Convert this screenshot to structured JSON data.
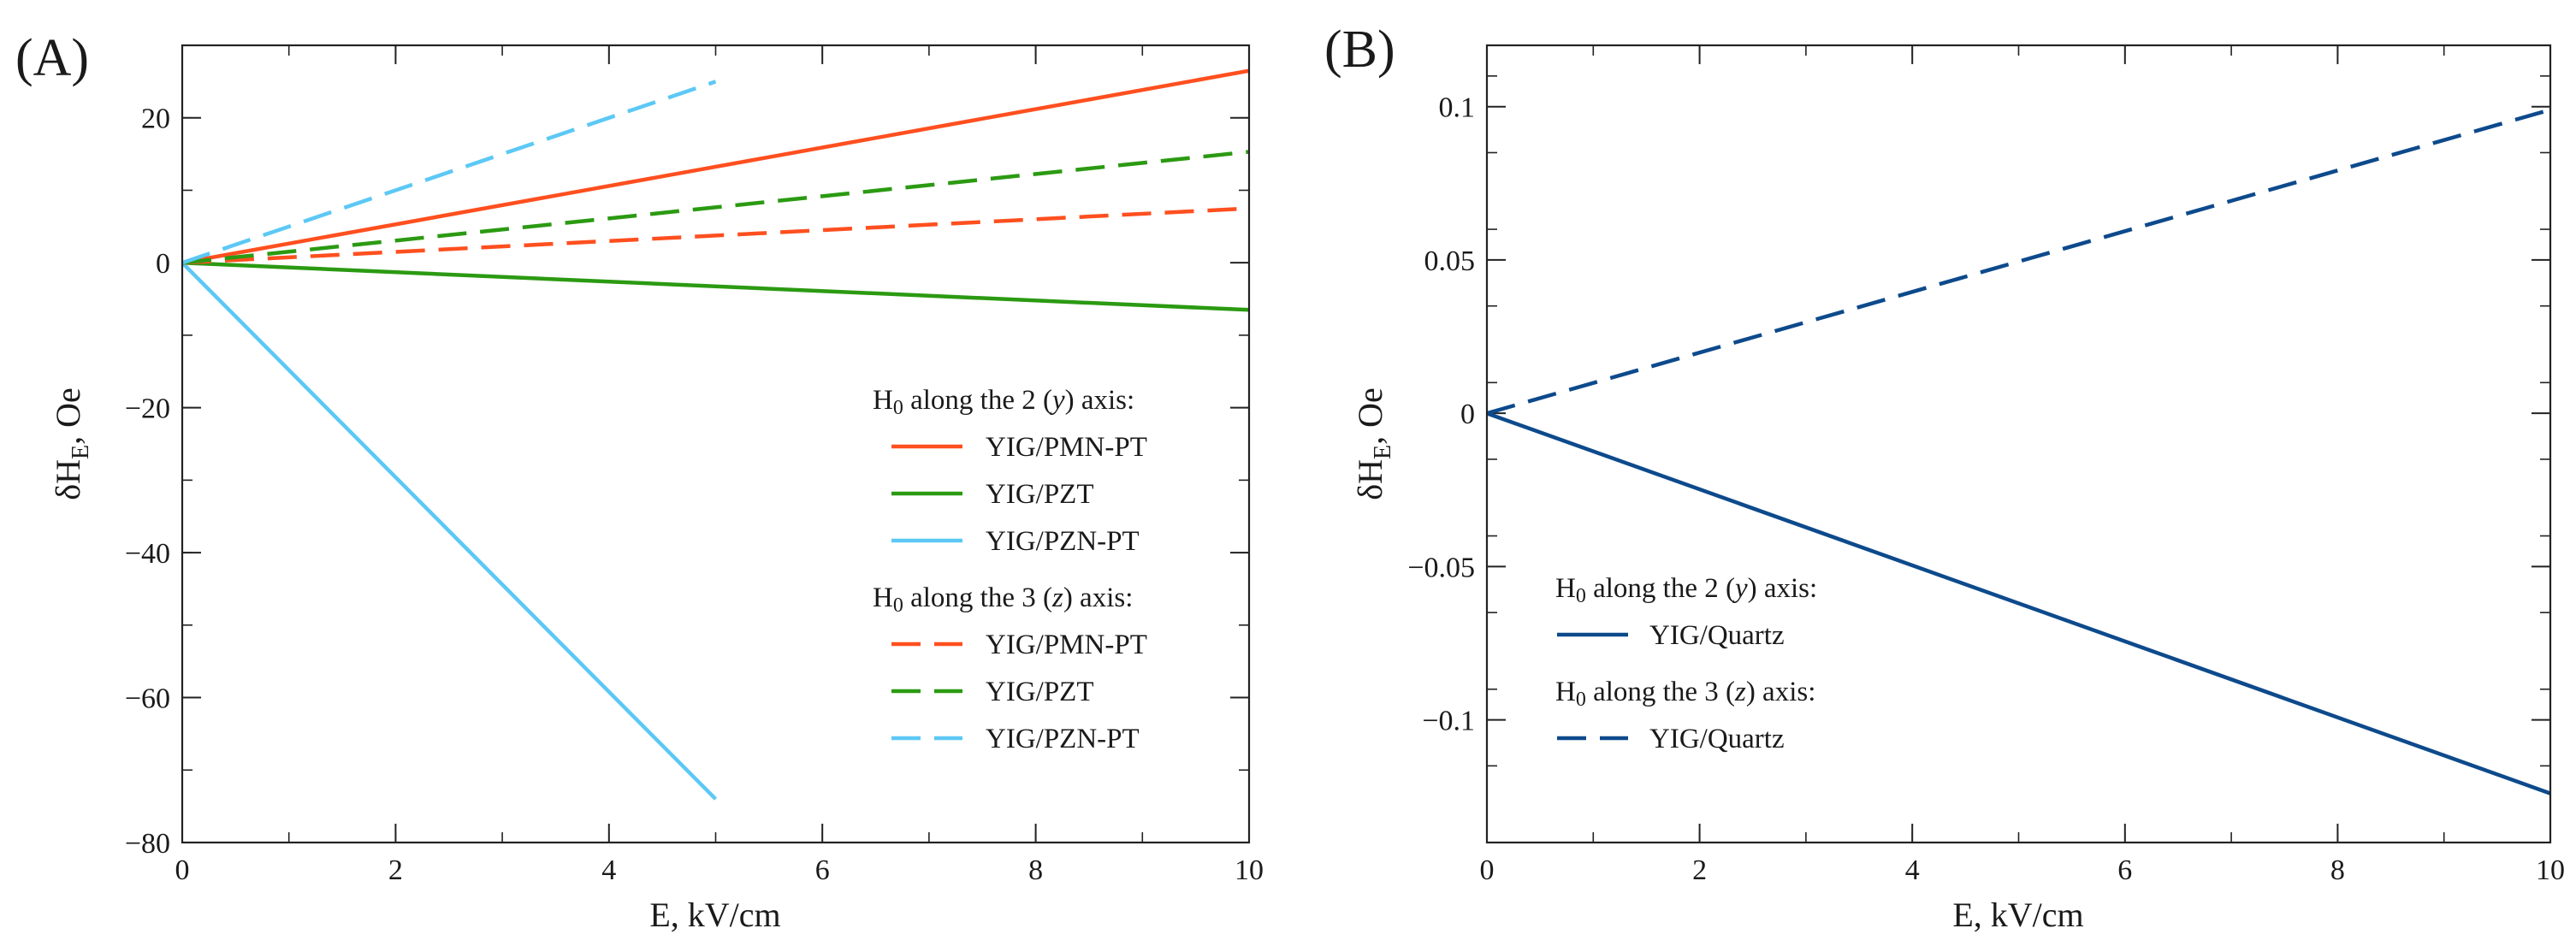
{
  "chart_data": [
    {
      "type": "line",
      "panel_label": "(A)",
      "xlabel": "E, kV/cm",
      "ylabel_main": "δH",
      "ylabel_sub": "E",
      "ylabel_tail": ", Oe",
      "xlim": [
        0,
        10
      ],
      "ylim": [
        -80,
        30
      ],
      "xticks": [
        0,
        2,
        4,
        6,
        8,
        10
      ],
      "xtick_labels": [
        "0",
        "2",
        "4",
        "6",
        "8",
        "10"
      ],
      "yticks": [
        -80,
        -60,
        -40,
        -20,
        0,
        20
      ],
      "ytick_labels": [
        "−80",
        "−60",
        "−40",
        "−20",
        "0",
        "20"
      ],
      "grid": false,
      "legend_position": "right",
      "legend_groups": [
        {
          "header_prefix": "H",
          "header_sub": "0",
          "header_text": " along the 2 (",
          "header_var": "y",
          "header_end": ") axis:",
          "series_indices": [
            0,
            1,
            2
          ]
        },
        {
          "header_prefix": "H",
          "header_sub": "0",
          "header_text": " along the 3 (",
          "header_var": "z",
          "header_end": ") axis:",
          "series_indices": [
            3,
            4,
            5
          ]
        }
      ],
      "series": [
        {
          "name": "YIG/PMN-PT",
          "style": "solid",
          "color": "#ff4f1f",
          "x": [
            0,
            10
          ],
          "y": [
            0,
            26.5
          ]
        },
        {
          "name": "YIG/PZT",
          "style": "solid",
          "color": "#2b9a12",
          "x": [
            0,
            10
          ],
          "y": [
            0,
            -6.5
          ]
        },
        {
          "name": "YIG/PZN-PT",
          "style": "solid",
          "color": "#5cc8f5",
          "x": [
            0,
            5
          ],
          "y": [
            0,
            -74
          ]
        },
        {
          "name": "YIG/PMN-PT",
          "style": "dashed",
          "color": "#ff4f1f",
          "x": [
            0,
            10
          ],
          "y": [
            0,
            7.5
          ]
        },
        {
          "name": "YIG/PZT",
          "style": "dashed",
          "color": "#2b9a12",
          "x": [
            0,
            10
          ],
          "y": [
            0,
            15.3
          ]
        },
        {
          "name": "YIG/PZN-PT",
          "style": "dashed",
          "color": "#5cc8f5",
          "x": [
            0,
            5
          ],
          "y": [
            0,
            25
          ]
        }
      ]
    },
    {
      "type": "line",
      "panel_label": "(B)",
      "xlabel": "E, kV/cm",
      "ylabel_main": "δH",
      "ylabel_sub": "E",
      "ylabel_tail": ", Oe",
      "xlim": [
        0,
        10
      ],
      "ylim": [
        -0.14,
        0.12
      ],
      "xticks": [
        0,
        2,
        4,
        6,
        8,
        10
      ],
      "xtick_labels": [
        "0",
        "2",
        "4",
        "6",
        "8",
        "10"
      ],
      "yticks": [
        -0.1,
        -0.05,
        0,
        0.05,
        0.1
      ],
      "ytick_labels": [
        "−0.1",
        "−0.05",
        "0",
        "0.05",
        "0.1"
      ],
      "grid": false,
      "legend_position": "bottom-left",
      "legend_groups": [
        {
          "header_prefix": "H",
          "header_sub": "0",
          "header_text": " along the 2 (",
          "header_var": "y",
          "header_end": ") axis:",
          "series_indices": [
            0
          ]
        },
        {
          "header_prefix": "H",
          "header_sub": "0",
          "header_text": " along the 3 (",
          "header_var": "z",
          "header_end": ") axis:",
          "series_indices": [
            1
          ]
        }
      ],
      "series": [
        {
          "name": "YIG/Quartz",
          "style": "solid",
          "color": "#0d4a8c",
          "x": [
            0,
            10
          ],
          "y": [
            0,
            -0.124
          ]
        },
        {
          "name": "YIG/Quartz",
          "style": "dashed",
          "color": "#0d4a8c",
          "x": [
            0,
            10
          ],
          "y": [
            0,
            0.099
          ]
        }
      ]
    }
  ]
}
